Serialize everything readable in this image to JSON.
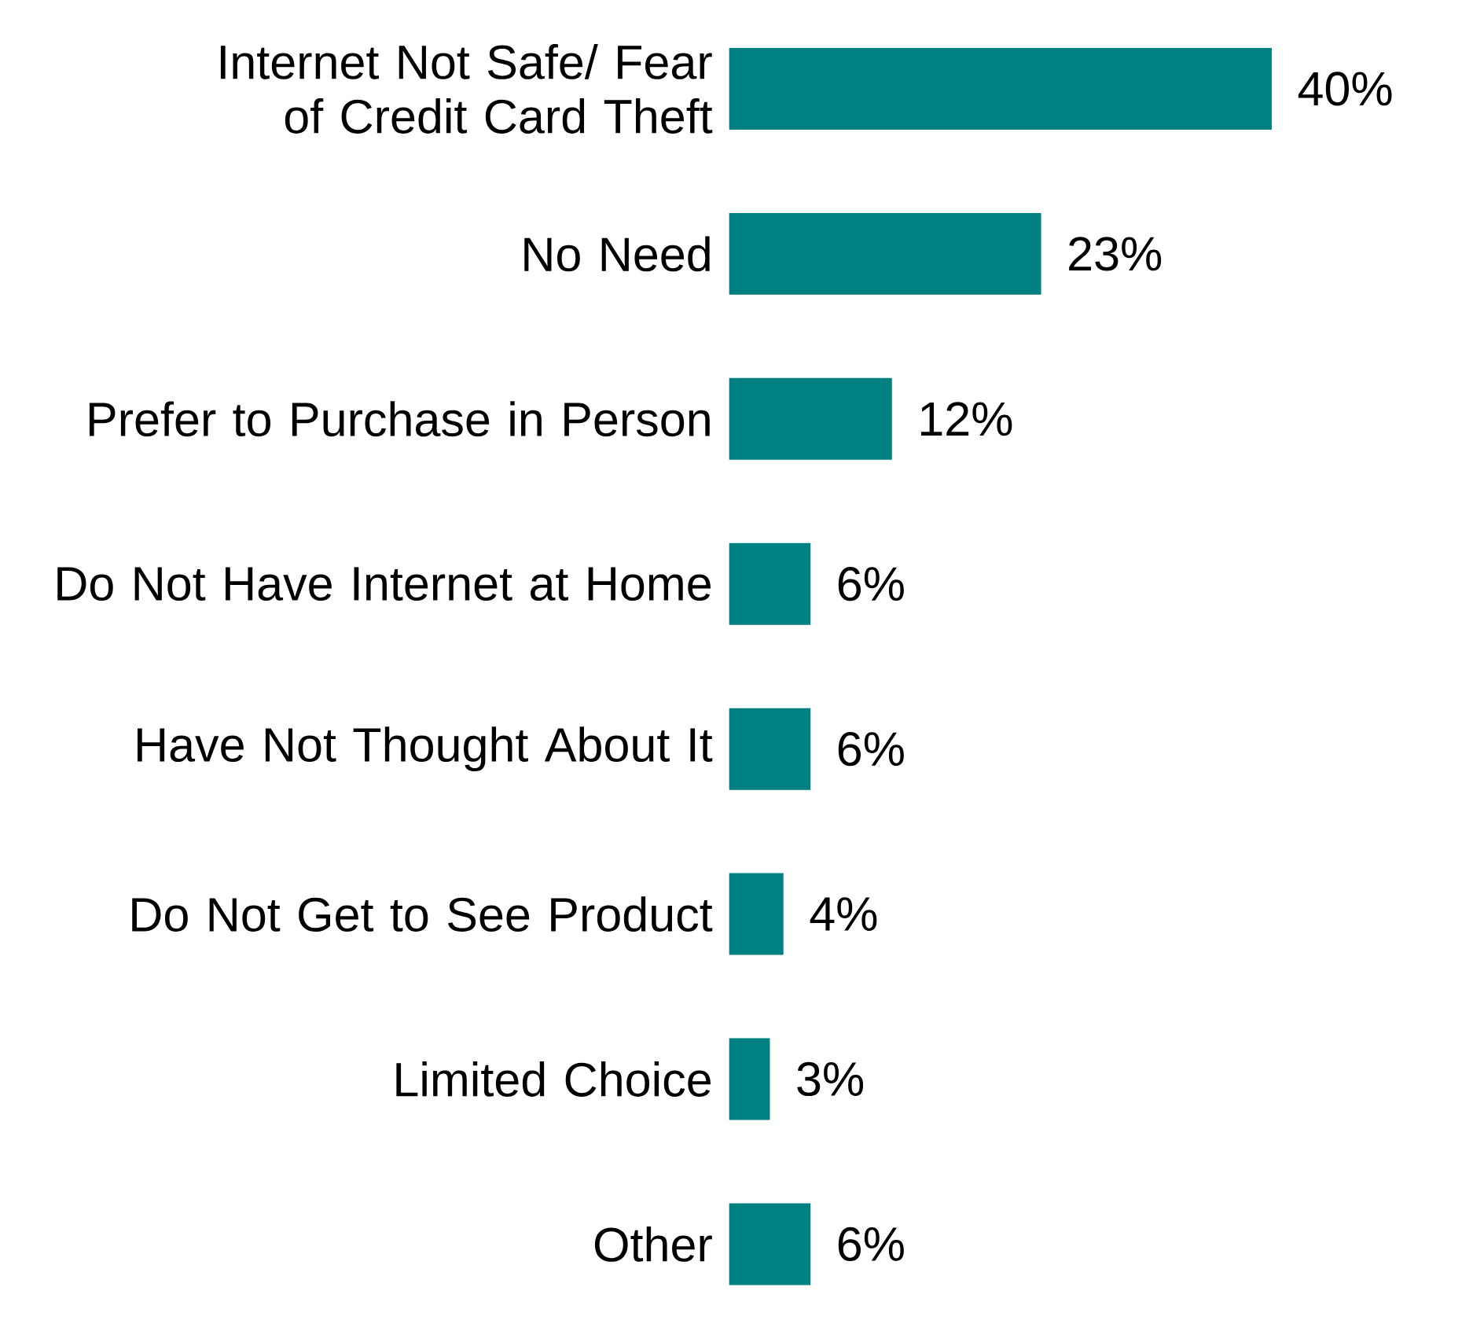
{
  "chart_data": {
    "type": "bar",
    "orientation": "horizontal",
    "categories": [
      "Internet Not Safe/ Fear of Credit Card Theft",
      "No Need",
      "Prefer to Purchase in Person",
      "Do Not Have Internet at Home",
      "Have Not Thought About It",
      "Do Not Get to See Product",
      "Limited Choice",
      "Other"
    ],
    "values": [
      40,
      23,
      12,
      6,
      6,
      4,
      3,
      6
    ],
    "value_labels": [
      "40%",
      "23%",
      "12%",
      "6%",
      "6%",
      "4%",
      "3%",
      "6%"
    ],
    "color": "#008080"
  }
}
